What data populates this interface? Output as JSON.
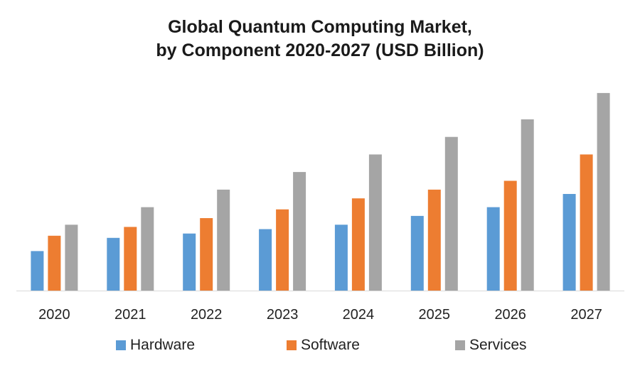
{
  "chart_data": {
    "type": "bar",
    "title_line1": "Global Quantum Computing Market,",
    "title_line2": "by Component 2020-2027 (USD Billion)",
    "categories": [
      "2020",
      "2021",
      "2022",
      "2023",
      "2024",
      "2025",
      "2026",
      "2027"
    ],
    "series": [
      {
        "name": "Hardware",
        "color": "#5b9bd5",
        "values": [
          0.9,
          1.2,
          1.3,
          1.4,
          1.5,
          1.7,
          1.9,
          2.2
        ]
      },
      {
        "name": "Software",
        "color": "#ed7d31",
        "values": [
          1.25,
          1.45,
          1.65,
          1.85,
          2.1,
          2.3,
          2.5,
          3.1
        ]
      },
      {
        "name": "Services",
        "color": "#a5a5a5",
        "values": [
          1.5,
          1.9,
          2.3,
          2.7,
          3.1,
          3.5,
          3.9,
          4.5
        ]
      }
    ],
    "ylim": [
      0,
      5
    ],
    "grid": false,
    "legend_position": "bottom"
  }
}
